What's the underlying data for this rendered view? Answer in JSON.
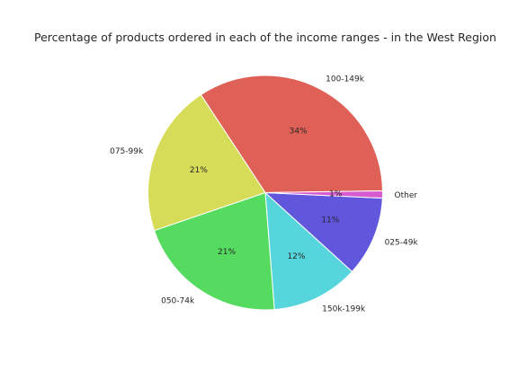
{
  "chart_data": {
    "type": "pie",
    "title": "Percentage of products ordered in each of the income ranges - in the West Region",
    "start_angle_deg": 0.9,
    "direction": "counterclockwise",
    "slices": [
      {
        "label": "100-149k",
        "value": 34,
        "pct_label": "34%",
        "color": "#de6056"
      },
      {
        "label": "075-99k",
        "value": 21,
        "pct_label": "21%",
        "color": "#d6dc58"
      },
      {
        "label": "050-74k",
        "value": 21,
        "pct_label": "21%",
        "color": "#55dc60"
      },
      {
        "label": "150k-199k",
        "value": 12,
        "pct_label": "12%",
        "color": "#56d5dd"
      },
      {
        "label": "025-49k",
        "value": 11,
        "pct_label": "11%",
        "color": "#6157dd"
      },
      {
        "label": "Other",
        "value": 1,
        "pct_label": "1%",
        "color": "#d65ad0"
      }
    ]
  }
}
